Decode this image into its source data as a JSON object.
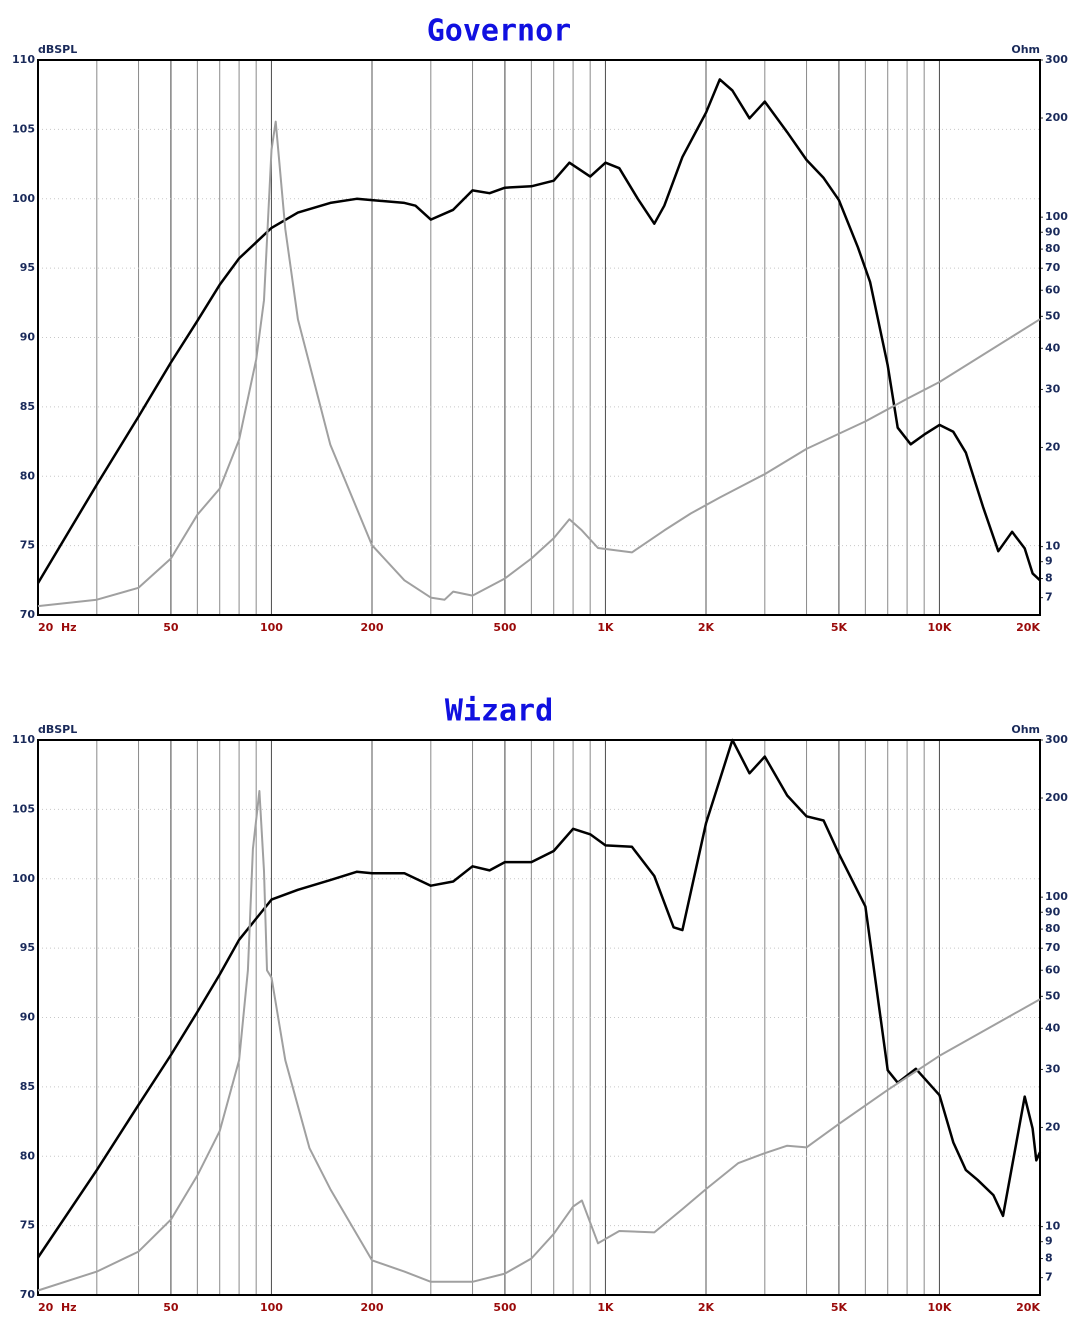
{
  "chart_data": [
    {
      "type": "line",
      "title": "Governor",
      "ylabel": "dBSPL",
      "y2label": "Ohm",
      "xscale": "log",
      "y2scale": "log",
      "grid": true,
      "xlim": [
        20,
        20000
      ],
      "xticks": [
        {
          "value": 20,
          "label": "20  Hz"
        },
        50,
        100,
        200,
        500,
        {
          "value": 1000,
          "label": "1K"
        },
        {
          "value": 2000,
          "label": "2K"
        },
        {
          "value": 5000,
          "label": "5K"
        },
        {
          "value": 10000,
          "label": "10K"
        },
        {
          "value": 20000,
          "label": "20K"
        }
      ],
      "ylim": [
        70,
        110
      ],
      "yticks": [
        70,
        75,
        80,
        85,
        90,
        95,
        100,
        105,
        110
      ],
      "y2lim": [
        6.2,
        300
      ],
      "y2ticks": [
        7,
        8,
        9,
        10,
        20,
        30,
        40,
        50,
        60,
        70,
        80,
        90,
        100,
        200,
        300
      ],
      "series": [
        {
          "color": "#000000",
          "x": [
            20,
            30,
            40,
            50,
            60,
            70,
            80,
            100,
            120,
            150,
            180,
            200,
            250,
            270,
            300,
            350,
            400,
            450,
            500,
            600,
            700,
            780,
            900,
            1000,
            1100,
            1250,
            1400,
            1500,
            1700,
            2000,
            2200,
            2400,
            2700,
            3000,
            3500,
            4000,
            4500,
            5000,
            5700,
            6200,
            7000,
            7500,
            8200,
            9000,
            10000,
            11000,
            12000,
            13500,
            15000,
            16500,
            18000,
            19000,
            20000
          ],
          "values": [
            72.3,
            79.4,
            84.3,
            88.2,
            91.2,
            93.8,
            95.7,
            97.9,
            99.0,
            99.7,
            100,
            99.9,
            99.7,
            99.5,
            98.5,
            99.2,
            100.6,
            100.4,
            100.8,
            100.9,
            101.3,
            102.6,
            101.6,
            102.6,
            102.2,
            100,
            98.2,
            99.5,
            103,
            106.2,
            108.6,
            107.8,
            105.8,
            107.0,
            104.8,
            102.8,
            101.5,
            99.9,
            96.5,
            94,
            88,
            83.5,
            82.3,
            83,
            83.7,
            83.2,
            81.7,
            77.8,
            74.6,
            76,
            74.8,
            73,
            72.5
          ]
        },
        {
          "color": "#a0a0a0",
          "axis": "y2",
          "x": [
            20,
            30,
            40,
            50,
            60,
            70,
            80,
            90,
            95,
            100,
            103,
            110,
            120,
            150,
            200,
            250,
            300,
            330,
            350,
            400,
            500,
            600,
            700,
            780,
            850,
            950,
            1200,
            1500,
            1800,
            2200,
            3000,
            4000,
            6000,
            8000,
            10000,
            20000
          ],
          "values": [
            6.6,
            6.9,
            7.5,
            9.2,
            12.5,
            15,
            21.1,
            37,
            56,
            160,
            195,
            92,
            49,
            20.4,
            10.1,
            7.9,
            7.0,
            6.9,
            7.3,
            7.1,
            8.0,
            9.2,
            10.6,
            12.1,
            11.2,
            9.9,
            9.6,
            11.2,
            12.6,
            14.1,
            16.6,
            19.8,
            24,
            28.1,
            31.6,
            49
          ]
        }
      ]
    },
    {
      "type": "line",
      "title": "Wizard",
      "ylabel": "dBSPL",
      "y2label": "Ohm",
      "xscale": "log",
      "y2scale": "log",
      "grid": true,
      "xlim": [
        20,
        20000
      ],
      "xticks": [
        {
          "value": 20,
          "label": "20  Hz"
        },
        50,
        100,
        200,
        500,
        {
          "value": 1000,
          "label": "1K"
        },
        {
          "value": 2000,
          "label": "2K"
        },
        {
          "value": 5000,
          "label": "5K"
        },
        {
          "value": 10000,
          "label": "10K"
        },
        {
          "value": 20000,
          "label": "20K"
        }
      ],
      "ylim": [
        70,
        110
      ],
      "yticks": [
        70,
        75,
        80,
        85,
        90,
        95,
        100,
        105,
        110
      ],
      "y2lim": [
        6.2,
        300
      ],
      "y2ticks": [
        7,
        8,
        9,
        10,
        20,
        30,
        40,
        50,
        60,
        70,
        80,
        90,
        100,
        200,
        300
      ],
      "series": [
        {
          "color": "#000000",
          "x": [
            20,
            30,
            40,
            50,
            60,
            70,
            80,
            100,
            120,
            150,
            180,
            200,
            250,
            300,
            350,
            400,
            450,
            500,
            600,
            700,
            800,
            900,
            1000,
            1200,
            1400,
            1600,
            1700,
            2000,
            2400,
            2700,
            3000,
            3500,
            4000,
            4500,
            5000,
            6000,
            7000,
            7500,
            8500,
            10000,
            11000,
            12000,
            13000,
            14500,
            15500,
            17000,
            18000,
            19000,
            19500,
            20000
          ],
          "values": [
            72.7,
            79,
            83.7,
            87.3,
            90.4,
            93.1,
            95.6,
            98.5,
            99.2,
            99.9,
            100.5,
            100.4,
            100.4,
            99.5,
            99.8,
            100.9,
            100.6,
            101.2,
            101.2,
            102,
            103.6,
            103.2,
            102.4,
            102.3,
            100.2,
            96.5,
            96.3,
            104,
            110,
            107.6,
            108.8,
            106,
            104.5,
            104.2,
            101.8,
            98,
            86.2,
            85.3,
            86.3,
            84.4,
            81,
            79,
            78.3,
            77.2,
            75.7,
            81,
            84.3,
            82,
            79.7,
            80.3
          ]
        },
        {
          "color": "#a0a0a0",
          "axis": "y2",
          "x": [
            20,
            30,
            40,
            50,
            60,
            70,
            80,
            85,
            88,
            92,
            95,
            97,
            100,
            110,
            130,
            150,
            200,
            250,
            300,
            400,
            500,
            600,
            700,
            800,
            850,
            950,
            1100,
            1400,
            1700,
            2000,
            2500,
            3000,
            3500,
            4000,
            5000,
            7000,
            10000,
            20000
          ],
          "values": [
            6.4,
            7.3,
            8.4,
            10.5,
            14.3,
            19.5,
            32,
            60,
            140,
            210,
            120,
            60,
            57,
            32,
            17.3,
            13,
            7.9,
            7.3,
            6.8,
            6.8,
            7.2,
            8.0,
            9.5,
            11.5,
            12,
            8.9,
            9.7,
            9.6,
            11.3,
            13,
            15.6,
            16.7,
            17.6,
            17.4,
            20.5,
            26,
            33,
            49
          ]
        }
      ]
    }
  ]
}
